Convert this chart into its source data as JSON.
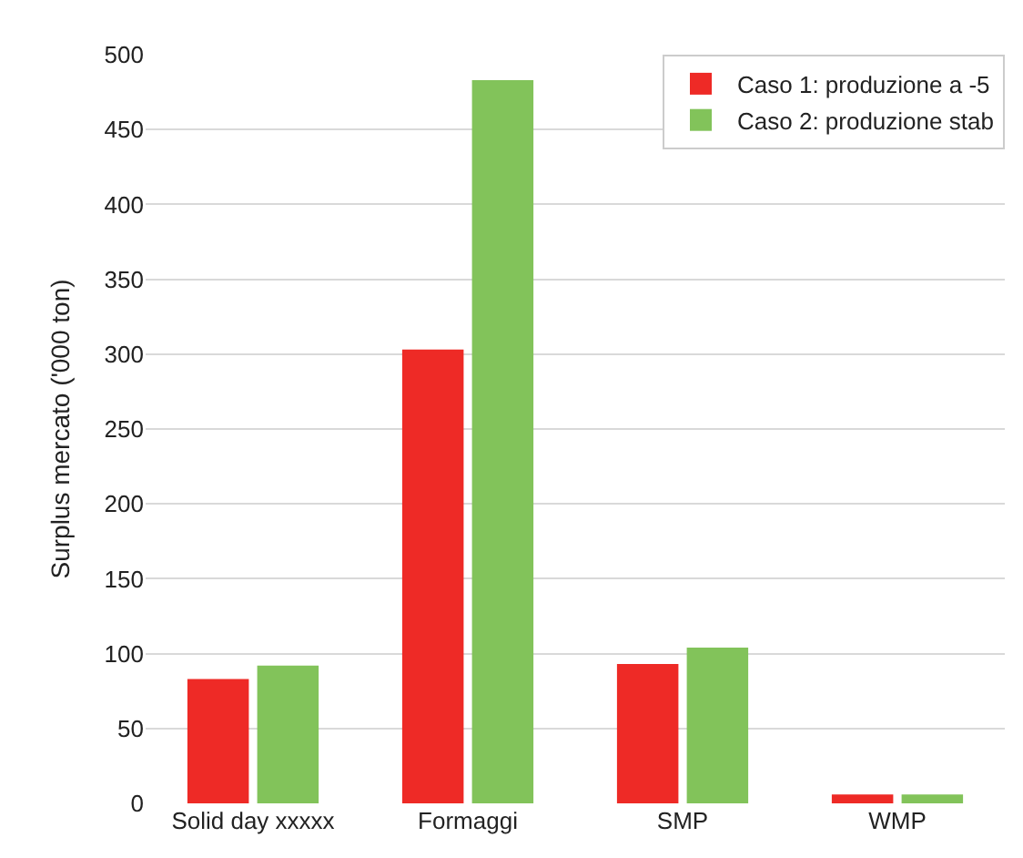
{
  "chart_data": {
    "type": "bar",
    "ylabel": "Surplus mercato ('000 ton)",
    "categories": [
      "Solid day xxxxx",
      "Formaggi",
      "SMP",
      "WMP"
    ],
    "series": [
      {
        "name": "Caso 1: produzione a -5",
        "color": "#ee2a26",
        "values": [
          83,
          303,
          93,
          6
        ]
      },
      {
        "name": "Caso 2: produzione stab",
        "color": "#82c35a",
        "values": [
          92,
          483,
          104,
          6
        ]
      }
    ],
    "ylim": [
      0,
      500
    ],
    "yticks": [
      0,
      50,
      100,
      150,
      200,
      250,
      300,
      350,
      400,
      450,
      500
    ],
    "grid": "y",
    "legend": "top right"
  }
}
